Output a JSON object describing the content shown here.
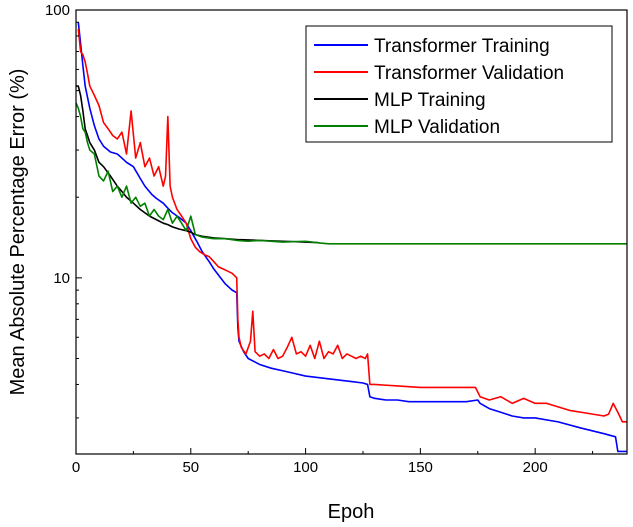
{
  "chart_data": {
    "type": "line",
    "xlabel": "Epoh",
    "ylabel": "Mean Absolute Percentage Error (%)",
    "x_scale": "linear",
    "y_scale": "log",
    "xlim": [
      0,
      240
    ],
    "ylim": [
      2.2,
      100
    ],
    "x_ticks": [
      {
        "value": 0,
        "label": "0"
      },
      {
        "value": 50,
        "label": "50"
      },
      {
        "value": 100,
        "label": "100"
      },
      {
        "value": 150,
        "label": "150"
      },
      {
        "value": 200,
        "label": "200"
      }
    ],
    "y_ticks": [
      {
        "value": 10,
        "label": "10"
      },
      {
        "value": 100,
        "label": "100"
      }
    ],
    "grid": false,
    "legend_position": "top-right",
    "series": [
      {
        "name": "Transformer Training",
        "color": "#0000ff",
        "x": [
          1,
          2,
          3,
          4,
          6,
          8,
          10,
          12,
          15,
          18,
          20,
          22,
          25,
          28,
          30,
          33,
          35,
          38,
          40,
          42,
          45,
          48,
          50,
          53,
          55,
          58,
          60,
          63,
          65,
          68,
          70,
          70.5,
          71,
          73,
          75,
          78,
          80,
          85,
          90,
          95,
          100,
          105,
          110,
          115,
          120,
          125,
          127,
          128,
          130,
          135,
          140,
          145,
          150,
          160,
          170,
          175,
          176,
          180,
          185,
          190,
          195,
          200,
          210,
          220,
          230,
          235,
          236,
          240
        ],
        "y": [
          90,
          75,
          62,
          52,
          43,
          37,
          33,
          31,
          29.5,
          29,
          28,
          27,
          26,
          23.5,
          22,
          20.5,
          19.8,
          19,
          18.2,
          17.5,
          16.8,
          16,
          15,
          13.5,
          12.5,
          11.5,
          10.8,
          10,
          9.5,
          9,
          8.8,
          6.5,
          5.8,
          5.3,
          5,
          4.85,
          4.75,
          4.6,
          4.5,
          4.4,
          4.3,
          4.25,
          4.2,
          4.15,
          4.1,
          4.05,
          4.0,
          3.6,
          3.55,
          3.5,
          3.5,
          3.45,
          3.45,
          3.45,
          3.45,
          3.5,
          3.4,
          3.25,
          3.15,
          3.05,
          3.0,
          3.0,
          2.9,
          2.75,
          2.62,
          2.55,
          2.25,
          2.25
        ]
      },
      {
        "name": "Transformer Validation",
        "color": "#ff0000",
        "x": [
          1,
          2,
          3,
          4,
          5,
          6,
          8,
          10,
          12,
          14,
          16,
          18,
          20,
          22,
          24,
          26,
          28,
          30,
          32,
          34,
          36,
          38,
          39,
          40,
          41,
          42,
          44,
          46,
          48,
          50,
          52,
          54,
          56,
          58,
          60,
          62,
          64,
          66,
          68,
          70,
          70.5,
          71,
          72,
          74,
          76,
          77,
          78,
          80,
          82,
          84,
          86,
          88,
          90,
          92,
          94,
          96,
          98,
          100,
          102,
          104,
          106,
          108,
          110,
          112,
          114,
          116,
          118,
          120,
          122,
          124,
          126,
          127,
          128,
          130,
          140,
          150,
          160,
          170,
          174,
          175,
          176,
          180,
          185,
          190,
          195,
          200,
          205,
          210,
          215,
          220,
          225,
          230,
          232,
          234,
          236,
          238,
          240
        ],
        "y": [
          85,
          70,
          68,
          64,
          58,
          52,
          48,
          44,
          38,
          36,
          34,
          33,
          35,
          29,
          42,
          28,
          32,
          26,
          28,
          24,
          26,
          22,
          24,
          40,
          22,
          20,
          18,
          17,
          16,
          14,
          13,
          12.5,
          12.2,
          12,
          11.5,
          11,
          10.8,
          10.6,
          10.4,
          10,
          7,
          6,
          5.5,
          5.2,
          5.8,
          7.5,
          5.3,
          5.1,
          5.2,
          5.0,
          5.4,
          5.0,
          5.1,
          5.5,
          6,
          5.2,
          5.3,
          5.1,
          5.6,
          5.0,
          5.8,
          5.0,
          5.3,
          5.2,
          5.6,
          5.0,
          5.2,
          5.1,
          5.0,
          5.1,
          5.0,
          5.2,
          4.0,
          4.0,
          3.95,
          3.9,
          3.9,
          3.9,
          3.9,
          3.75,
          3.6,
          3.5,
          3.6,
          3.4,
          3.55,
          3.4,
          3.4,
          3.3,
          3.2,
          3.15,
          3.1,
          3.05,
          3.1,
          3.4,
          3.15,
          2.9,
          2.9
        ]
      },
      {
        "name": "MLP Training",
        "color": "#000000",
        "x": [
          0,
          1,
          2,
          3,
          4,
          5,
          6,
          8,
          10,
          12,
          15,
          18,
          20,
          22,
          25,
          28,
          30,
          32,
          35,
          38,
          40,
          42,
          45,
          48,
          50,
          52,
          55,
          60,
          65,
          70,
          75,
          80,
          90,
          100,
          105,
          106
        ],
        "y": [
          52,
          52,
          48,
          42,
          36,
          34,
          32,
          30,
          27,
          26,
          24,
          22,
          21,
          20,
          19,
          18,
          17.5,
          17,
          16.5,
          16,
          15.8,
          15.5,
          15.2,
          15,
          14.8,
          14.5,
          14.3,
          14.1,
          14,
          13.9,
          13.85,
          13.8,
          13.7,
          13.6,
          13.55,
          13.5
        ]
      },
      {
        "name": "MLP Validation",
        "color": "#008000",
        "x": [
          0,
          1,
          2,
          3,
          4,
          5,
          6,
          8,
          10,
          12,
          14,
          16,
          18,
          20,
          22,
          24,
          26,
          28,
          30,
          32,
          34,
          36,
          38,
          40,
          42,
          44,
          46,
          48,
          50,
          52,
          55,
          60,
          65,
          70,
          75,
          80,
          90,
          100,
          106,
          110,
          120,
          150,
          200,
          240
        ],
        "y": [
          45,
          43,
          40,
          36,
          35,
          32,
          30,
          29,
          24,
          23,
          25,
          21,
          22,
          20,
          22,
          19,
          20,
          18.5,
          19,
          17,
          18,
          17,
          16.5,
          18,
          16,
          17,
          16,
          15,
          17,
          14.5,
          14.2,
          14,
          14,
          13.8,
          13.7,
          13.8,
          13.6,
          13.7,
          13.5,
          13.4,
          13.4,
          13.4,
          13.4,
          13.4
        ]
      }
    ]
  }
}
